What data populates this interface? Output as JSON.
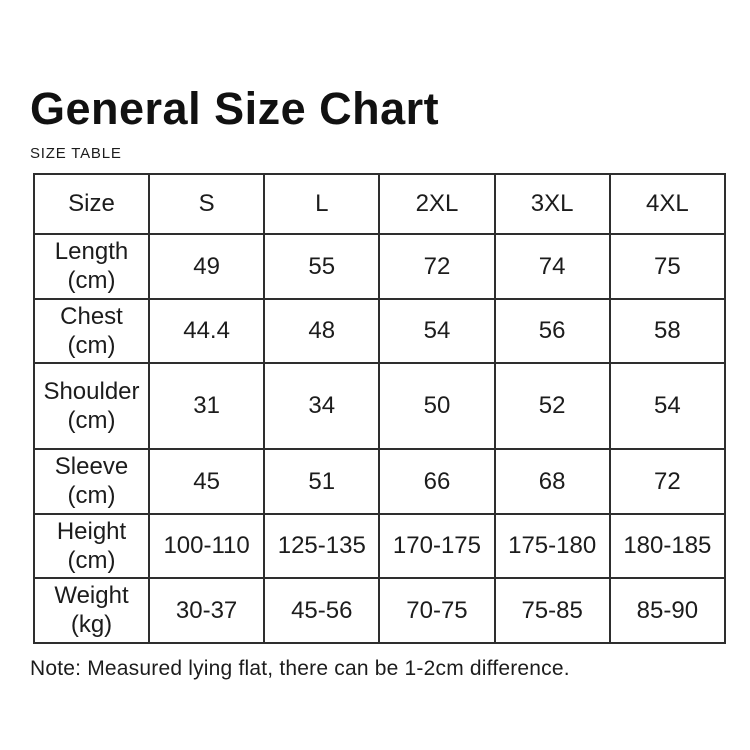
{
  "page": {
    "title": "General Size Chart",
    "subtitle": "SIZE TABLE",
    "note": "Note: Measured lying flat, there can be 1-2cm difference."
  },
  "colors": {
    "background": "#ffffff",
    "text": "#1c1c1c",
    "border": "#2e2e2e"
  },
  "chart_data": {
    "type": "table",
    "columns": [
      "Size",
      "S",
      "L",
      "2XL",
      "3XL",
      "4XL"
    ],
    "rows": [
      {
        "label": "Length",
        "unit": "(cm)",
        "values": [
          "49",
          "55",
          "72",
          "74",
          "75"
        ]
      },
      {
        "label": "Chest",
        "unit": "(cm)",
        "values": [
          "44.4",
          "48",
          "54",
          "56",
          "58"
        ]
      },
      {
        "label": "Shoulder",
        "unit": "(cm)",
        "values": [
          "31",
          "34",
          "50",
          "52",
          "54"
        ]
      },
      {
        "label": "Sleeve",
        "unit": "(cm)",
        "values": [
          "45",
          "51",
          "66",
          "68",
          "72"
        ]
      },
      {
        "label": "Height",
        "unit": "(cm)",
        "values": [
          "100-110",
          "125-135",
          "170-175",
          "175-180",
          "180-185"
        ]
      },
      {
        "label": "Weight",
        "unit": "(kg)",
        "values": [
          "30-37",
          "45-56",
          "70-75",
          "75-85",
          "85-90"
        ]
      }
    ]
  }
}
